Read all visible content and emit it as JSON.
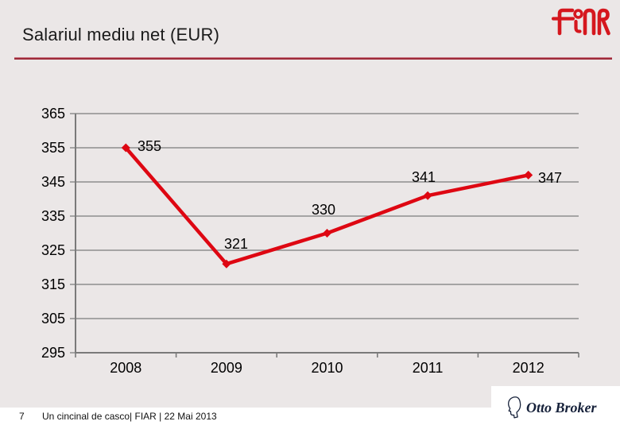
{
  "slide": {
    "title": "Salariul mediu net (EUR)",
    "page_number": "7",
    "footer_text": "Un cincinal de casco| FIAR | 22 Mai 2013"
  },
  "logos": {
    "fiar": "FIAR",
    "otto_broker": "Otto Broker"
  },
  "colors": {
    "background": "#EBE7E7",
    "line": "#DE0712",
    "grid": "#8E8E8E",
    "axis": "#7A7A7A",
    "text": "#000000",
    "divider_red": "#9E2B3A",
    "fiar_red": "#D5171E",
    "otto_navy": "#16213A"
  },
  "chart_data": {
    "type": "line",
    "title": "Salariul mediu net (EUR)",
    "xlabel": "",
    "ylabel": "",
    "categories": [
      "2008",
      "2009",
      "2010",
      "2011",
      "2012"
    ],
    "values": [
      355,
      321,
      330,
      341,
      347
    ],
    "data_labels": [
      "355",
      "321",
      "330",
      "341",
      "347"
    ],
    "ylim": [
      295,
      365
    ],
    "yticks": [
      295,
      305,
      315,
      325,
      335,
      345,
      355,
      365
    ],
    "grid": true,
    "legend": false,
    "marker": "diamond",
    "label_positions": [
      {
        "x": 173,
        "y": 190,
        "anchor": "start"
      },
      {
        "x": 297,
        "y": 313,
        "anchor": "middle"
      },
      {
        "x": 407,
        "y": 270,
        "anchor": "middle"
      },
      {
        "x": 533,
        "y": 229,
        "anchor": "middle"
      },
      {
        "x": 692,
        "y": 230,
        "anchor": "middle"
      }
    ]
  }
}
